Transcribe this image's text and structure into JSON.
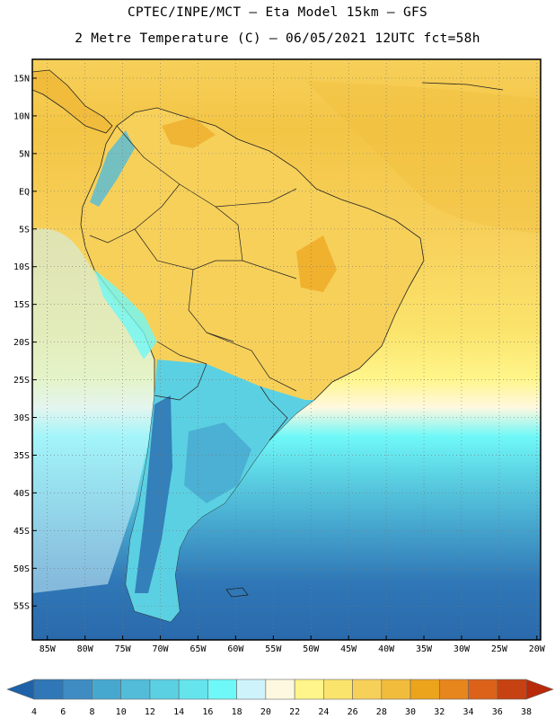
{
  "title_line1": "CPTEC/INPE/MCT –  Eta Model 15km – GFS",
  "title_line2": "2 Metre Temperature (C) – 06/05/2021 12UTC fct=58h",
  "lat_labels": [
    "15N",
    "10N",
    "5N",
    "EQ",
    "5S",
    "10S",
    "15S",
    "20S",
    "25S",
    "30S",
    "35S",
    "40S",
    "45S",
    "50S",
    "55S"
  ],
  "lon_labels": [
    "85W",
    "80W",
    "75W",
    "70W",
    "65W",
    "60W",
    "55W",
    "50W",
    "45W",
    "40W",
    "35W",
    "30W",
    "25W",
    "20W"
  ],
  "lat_values": [
    15,
    10,
    5,
    0,
    -5,
    -10,
    -15,
    -20,
    -25,
    -30,
    -35,
    -40,
    -45,
    -50,
    -55
  ],
  "lon_values": [
    -85,
    -80,
    -75,
    -70,
    -65,
    -60,
    -55,
    -50,
    -45,
    -40,
    -35,
    -30,
    -25,
    -20
  ],
  "colorbar": {
    "labels": [
      "4",
      "6",
      "8",
      "10",
      "12",
      "14",
      "16",
      "18",
      "20",
      "22",
      "24",
      "26",
      "28",
      "30",
      "32",
      "34",
      "36",
      "38"
    ],
    "colors": [
      "#1f62a8",
      "#2f77b6",
      "#3f8cc3",
      "#47a8cf",
      "#52bcd9",
      "#5bd0e2",
      "#66e4ec",
      "#6ff8f8",
      "#cef3fb",
      "#fff8e0",
      "#fff58a",
      "#fbe46c",
      "#f7d05a",
      "#f1bc3c",
      "#eca41c",
      "#e6861c",
      "#dc621a",
      "#c64212",
      "#b82a0a"
    ]
  }
}
